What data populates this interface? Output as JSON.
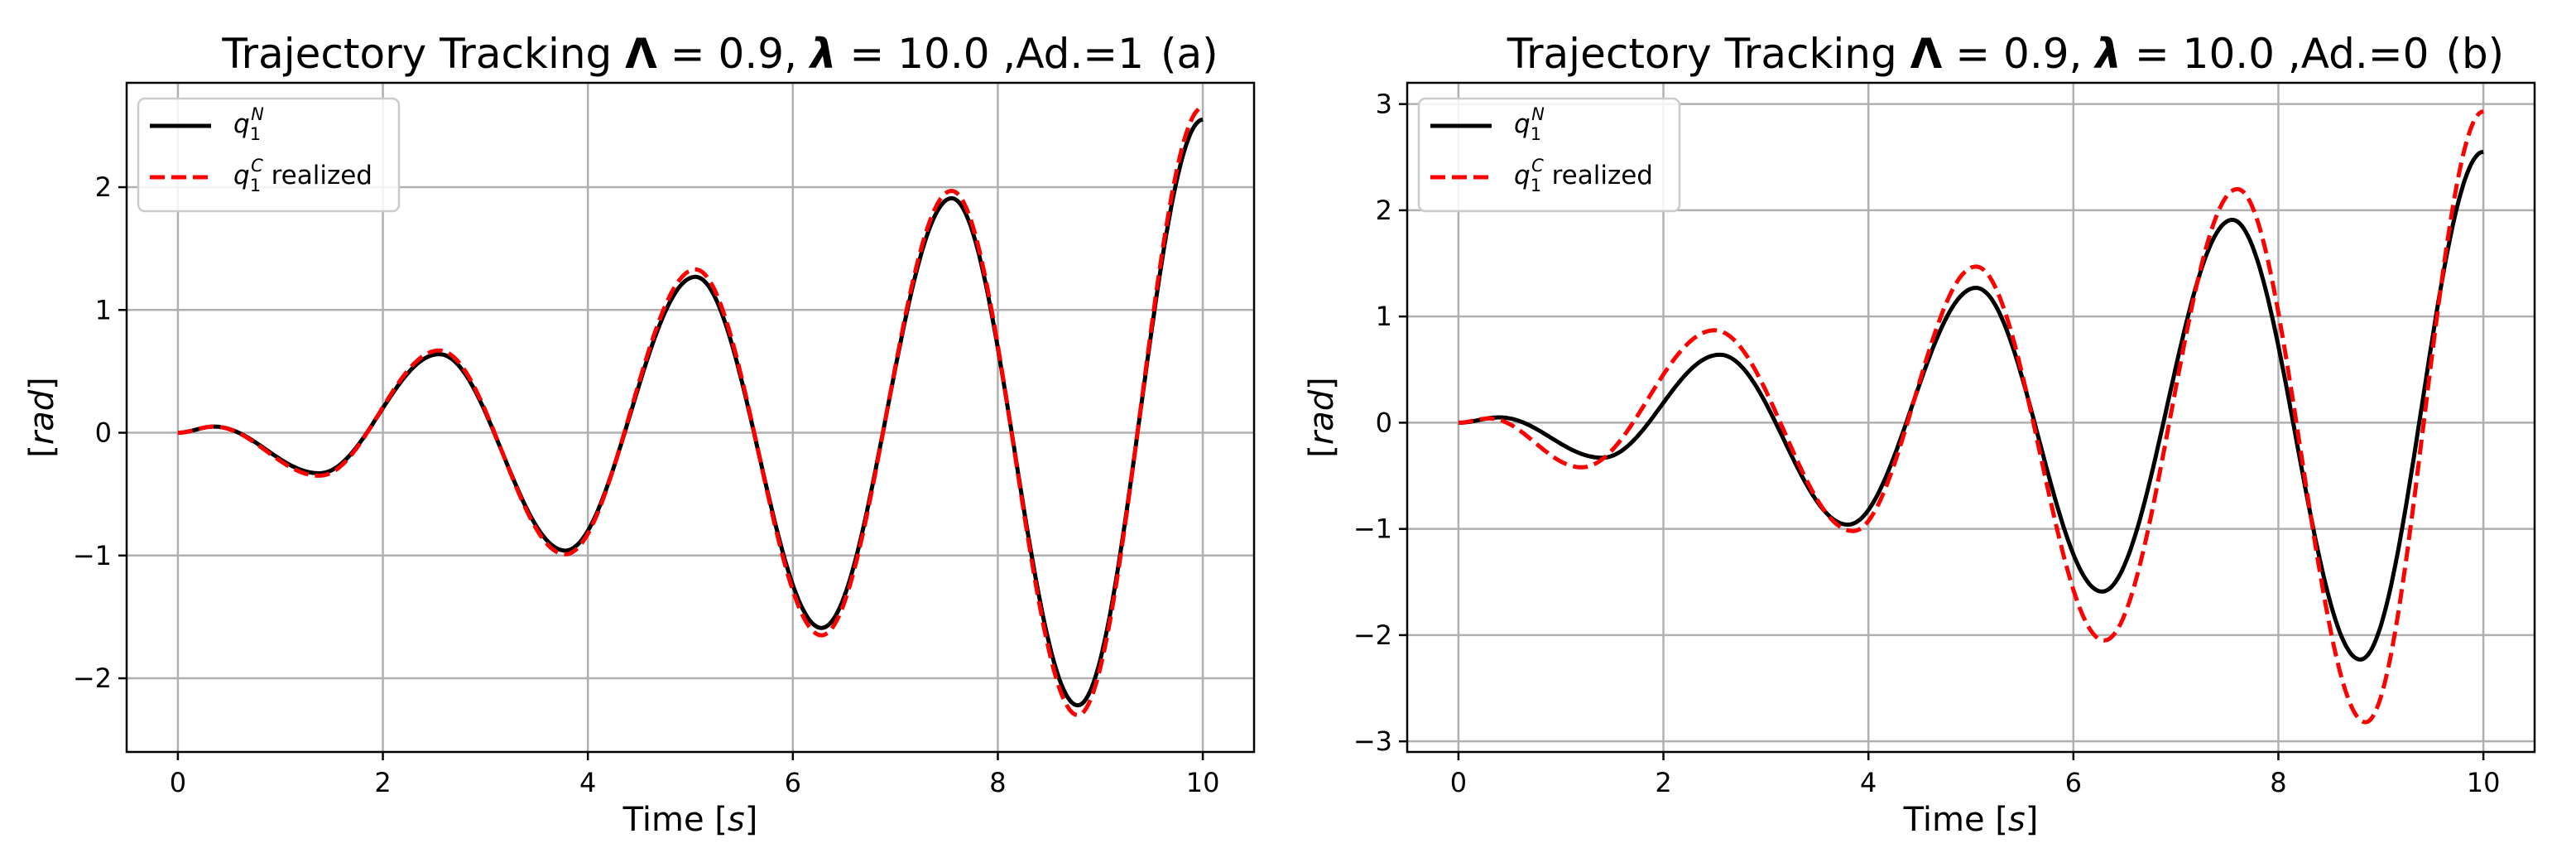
{
  "chart_data": [
    {
      "type": "line",
      "title": "Trajectory Tracking Λ = 0.9, λ = 10.0 ,Ad.=1",
      "title_parts": {
        "prefix": "Trajectory Tracking ",
        "Lambda": "Λ",
        "Lambda_eq": " = 0.9, ",
        "lambda": "λ",
        "lambda_eq": " = 10.0 ,Ad.=1"
      },
      "panel_label": "(a)",
      "xlabel": "Time [s]",
      "xlabel_parts": {
        "text": "Time [",
        "unit": "s",
        "close": "]"
      },
      "ylabel": "[rad]",
      "ylabel_parts": {
        "open": "[",
        "unit": "rad",
        "close": "]"
      },
      "xlim": [
        -0.5,
        10.5
      ],
      "ylim": [
        -2.6,
        2.85
      ],
      "xticks": [
        0,
        2,
        4,
        6,
        8,
        10
      ],
      "xtick_labels": [
        "0",
        "2",
        "4",
        "6",
        "8",
        "10"
      ],
      "yticks": [
        -2,
        -1,
        0,
        1,
        2
      ],
      "ytick_labels": [
        "−2",
        "−1",
        "0",
        "1",
        "2"
      ],
      "grid": true,
      "legend_position": "upper-left",
      "series": [
        {
          "name": "q1^N",
          "legend": {
            "sym": "q",
            "sub": "1",
            "sup": "N",
            "suffix": ""
          },
          "color": "#000000",
          "style": "solid",
          "extrema": [
            [
              0,
              0
            ],
            [
              0.35,
              0.05
            ],
            [
              1.38,
              -0.33
            ],
            [
              2.55,
              0.64
            ],
            [
              3.78,
              -0.96
            ],
            [
              5.05,
              1.27
            ],
            [
              6.28,
              -1.59
            ],
            [
              7.55,
              1.91
            ],
            [
              8.78,
              -2.22
            ],
            [
              10.0,
              2.55
            ]
          ]
        },
        {
          "name": "q1^C realized",
          "legend": {
            "sym": "q",
            "sub": "1",
            "sup": "C",
            "suffix": " realized"
          },
          "color": "#ff0000",
          "style": "dashed",
          "extrema": [
            [
              0,
              0
            ],
            [
              0.35,
              0.05
            ],
            [
              1.38,
              -0.35
            ],
            [
              2.55,
              0.67
            ],
            [
              3.78,
              -0.99
            ],
            [
              5.05,
              1.33
            ],
            [
              6.28,
              -1.65
            ],
            [
              7.55,
              1.97
            ],
            [
              8.78,
              -2.3
            ],
            [
              10.0,
              2.65
            ]
          ]
        }
      ]
    },
    {
      "type": "line",
      "title": "Trajectory Tracking Λ = 0.9, λ = 10.0 ,Ad.=0",
      "title_parts": {
        "prefix": "Trajectory Tracking ",
        "Lambda": "Λ",
        "Lambda_eq": " = 0.9, ",
        "lambda": "λ",
        "lambda_eq": " = 10.0 ,Ad.=0"
      },
      "panel_label": "(b)",
      "xlabel": "Time [s]",
      "xlabel_parts": {
        "text": "Time [",
        "unit": "s",
        "close": "]"
      },
      "ylabel": "[rad]",
      "ylabel_parts": {
        "open": "[",
        "unit": "rad",
        "close": "]"
      },
      "xlim": [
        -0.5,
        10.5
      ],
      "ylim": [
        -3.1,
        3.2
      ],
      "xticks": [
        0,
        2,
        4,
        6,
        8,
        10
      ],
      "xtick_labels": [
        "0",
        "2",
        "4",
        "6",
        "8",
        "10"
      ],
      "yticks": [
        -3,
        -2,
        -1,
        0,
        1,
        2,
        3
      ],
      "ytick_labels": [
        "−3",
        "−2",
        "−1",
        "0",
        "1",
        "2",
        "3"
      ],
      "grid": true,
      "legend_position": "upper-left",
      "series": [
        {
          "name": "q1^N",
          "legend": {
            "sym": "q",
            "sub": "1",
            "sup": "N",
            "suffix": ""
          },
          "color": "#000000",
          "style": "solid",
          "extrema": [
            [
              0,
              0
            ],
            [
              0.4,
              0.05
            ],
            [
              1.4,
              -0.33
            ],
            [
              2.55,
              0.64
            ],
            [
              3.8,
              -0.96
            ],
            [
              5.05,
              1.27
            ],
            [
              6.28,
              -1.59
            ],
            [
              7.55,
              1.91
            ],
            [
              8.8,
              -2.23
            ],
            [
              10.0,
              2.55
            ]
          ]
        },
        {
          "name": "q1^C realized",
          "legend": {
            "sym": "q",
            "sub": "1",
            "sup": "C",
            "suffix": " realized"
          },
          "color": "#ff0000",
          "style": "dashed",
          "extrema": [
            [
              0,
              0
            ],
            [
              0.3,
              0.04
            ],
            [
              1.2,
              -0.42
            ],
            [
              2.5,
              0.87
            ],
            [
              3.85,
              -1.02
            ],
            [
              5.05,
              1.47
            ],
            [
              6.3,
              -2.05
            ],
            [
              7.6,
              2.2
            ],
            [
              8.85,
              -2.82
            ],
            [
              10.0,
              2.93
            ]
          ]
        }
      ]
    }
  ]
}
